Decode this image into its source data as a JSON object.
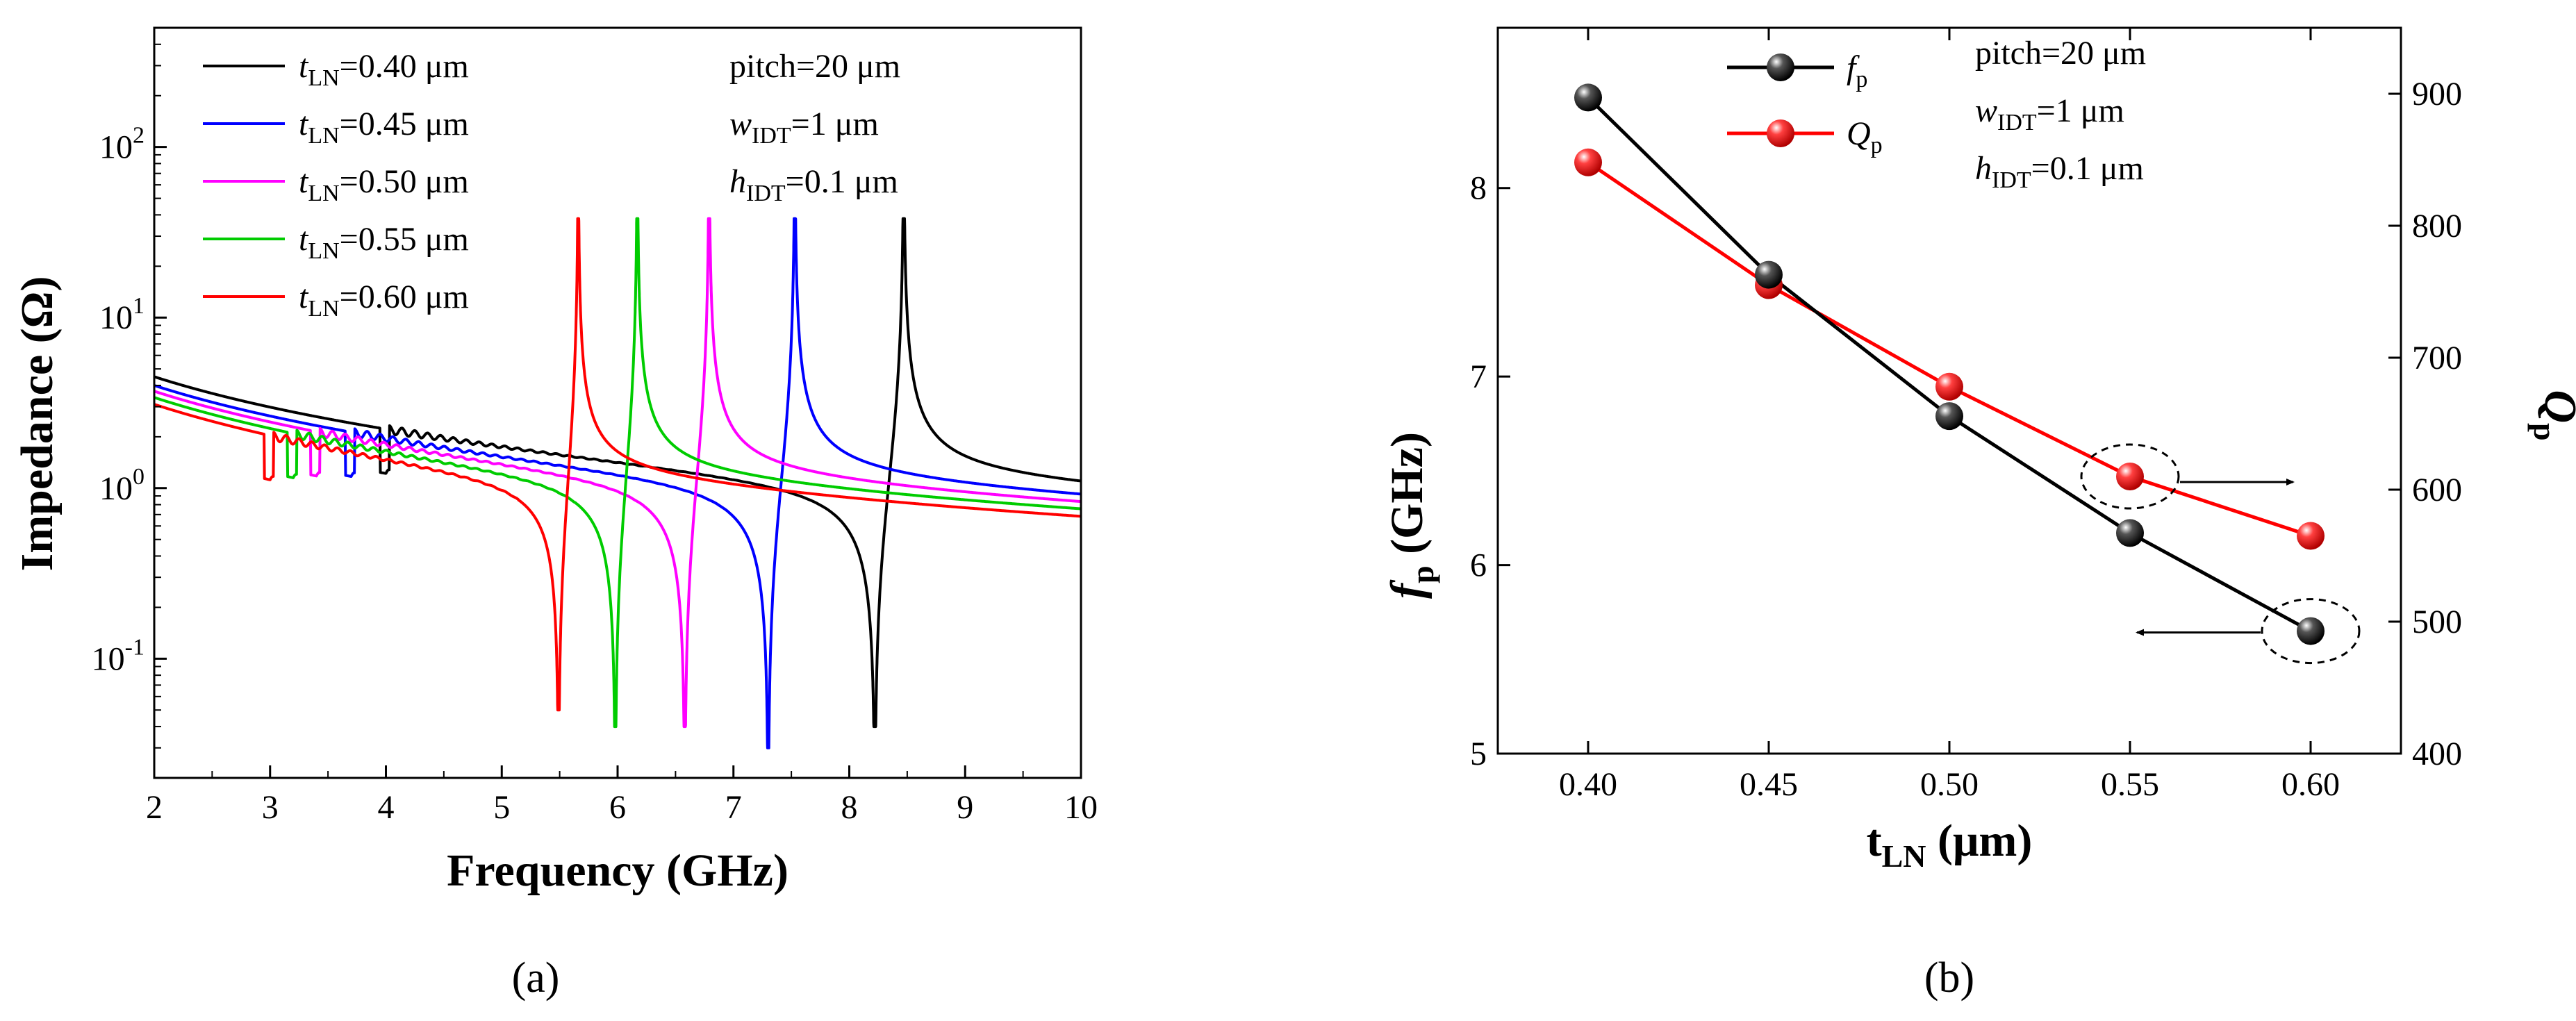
{
  "chart_data": [
    {
      "type": "line",
      "panel": "a",
      "panel_label": "(a)",
      "xlabel": "Frequency (GHz)",
      "ylabel": "Impedance (Ω)",
      "xlim": [
        2,
        10
      ],
      "ylim": [
        0.02,
        500
      ],
      "yscale": "log",
      "x_ticks": [
        "2",
        "3",
        "4",
        "5",
        "6",
        "7",
        "8",
        "9",
        "10"
      ],
      "y_ticks": [
        {
          "base": "10",
          "exp": "-1",
          "value": 0.1
        },
        {
          "base": "10",
          "exp": "0",
          "value": 1
        },
        {
          "base": "10",
          "exp": "1",
          "value": 10
        },
        {
          "base": "10",
          "exp": "2",
          "value": 100
        }
      ],
      "legend_position": "top-left",
      "series": [
        {
          "name": "t",
          "sub": "LN",
          "value_text": "=0.40 μm",
          "color": "#000000",
          "fs": 8.22,
          "fp": 8.47,
          "z0": 4.5,
          "zinf": 1.13,
          "zmin": 0.04,
          "zmax": 38,
          "spur_start": 4.0
        },
        {
          "name": "t",
          "sub": "LN",
          "value_text": "=0.45 μm",
          "color": "#0000ff",
          "fs": 7.3,
          "fp": 7.53,
          "z0": 4.0,
          "zinf": 0.95,
          "zmin": 0.03,
          "zmax": 38,
          "spur_start": 3.7
        },
        {
          "name": "t",
          "sub": "LN",
          "value_text": "=0.50 μm",
          "color": "#ff00ff",
          "fs": 6.58,
          "fp": 6.79,
          "z0": 3.7,
          "zinf": 0.85,
          "zmin": 0.04,
          "zmax": 38,
          "spur_start": 3.4
        },
        {
          "name": "t",
          "sub": "LN",
          "value_text": "=0.55 μm",
          "color": "#00cc00",
          "fs": 5.98,
          "fp": 6.17,
          "z0": 3.4,
          "zinf": 0.75,
          "zmin": 0.04,
          "zmax": 38,
          "spur_start": 3.2
        },
        {
          "name": "t",
          "sub": "LN",
          "value_text": "=0.60 μm",
          "color": "#ff0000",
          "fs": 5.49,
          "fp": 5.66,
          "z0": 3.1,
          "zinf": 0.68,
          "zmin": 0.05,
          "zmax": 38,
          "spur_start": 3.0
        }
      ],
      "annotations": [
        {
          "main": "pitch=20 μm",
          "sub": "",
          "rest": ""
        },
        {
          "main": "w",
          "sub": "IDT",
          "rest": "=1 μm"
        },
        {
          "main": "h",
          "sub": "IDT",
          "rest": "=0.1 μm"
        }
      ]
    },
    {
      "type": "line",
      "panel": "b",
      "panel_label": "(b)",
      "xlabel_main": "t",
      "xlabel_sub": "LN",
      "xlabel_rest": " (μm)",
      "ylabel_left_main": "f",
      "ylabel_left_sub": "p",
      "ylabel_left_rest": " (GHz)",
      "ylabel_right_main": "Q",
      "ylabel_right_sub": "p",
      "x": [
        0.4,
        0.45,
        0.5,
        0.55,
        0.6
      ],
      "xlim": [
        0.375,
        0.625
      ],
      "x_ticks": [
        "0.40",
        "0.45",
        "0.50",
        "0.55",
        "0.60"
      ],
      "ylim_left": [
        5,
        8.85
      ],
      "y_ticks_left": [
        "5",
        "6",
        "7",
        "8"
      ],
      "ylim_right": [
        400,
        950
      ],
      "y_ticks_right": [
        "400",
        "500",
        "600",
        "700",
        "800",
        "900"
      ],
      "series": [
        {
          "name": "f",
          "sub": "p",
          "axis": "left",
          "color": "#000000",
          "marker_color": "#111111",
          "values": [
            8.48,
            7.54,
            6.79,
            6.17,
            5.65
          ]
        },
        {
          "name": "Q",
          "sub": "p",
          "axis": "right",
          "color": "#ff0000",
          "marker_color": "#ee0000",
          "values": [
            848,
            755,
            678,
            610,
            565
          ]
        }
      ],
      "annotations": [
        {
          "main": "pitch=20 μm",
          "sub": "",
          "rest": ""
        },
        {
          "main": "w",
          "sub": "IDT",
          "rest": "=1 μm"
        },
        {
          "main": "h",
          "sub": "IDT",
          "rest": "=0.1 μm"
        }
      ],
      "arrows": [
        {
          "label": "fp-points-left-axis",
          "series": "f",
          "index": 4,
          "direction": "left"
        },
        {
          "label": "qp-points-right-axis",
          "series": "Q",
          "index": 3,
          "direction": "right"
        }
      ]
    }
  ]
}
